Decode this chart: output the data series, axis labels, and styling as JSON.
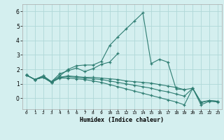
{
  "title": "",
  "xlabel": "Humidex (Indice chaleur)",
  "background_color": "#d4efef",
  "grid_color": "#b0d8d8",
  "line_color": "#2e7d72",
  "x_ticks": [
    0,
    1,
    2,
    3,
    4,
    5,
    6,
    7,
    8,
    9,
    10,
    11,
    12,
    13,
    14,
    15,
    16,
    17,
    18,
    19,
    20,
    21,
    22,
    23
  ],
  "ylim": [
    -0.75,
    6.5
  ],
  "xlim": [
    -0.5,
    23.5
  ],
  "series": [
    [
      1.6,
      1.3,
      1.55,
      1.15,
      1.55,
      2.0,
      2.25,
      2.3,
      2.3,
      2.55,
      3.65,
      4.25,
      4.8,
      5.35,
      5.9,
      2.4,
      2.7,
      2.5,
      0.65,
      0.6,
      null,
      null,
      null,
      null
    ],
    [
      1.6,
      1.3,
      1.55,
      1.15,
      1.7,
      1.9,
      2.1,
      1.85,
      2.05,
      2.35,
      2.5,
      3.1,
      null,
      null,
      null,
      null,
      null,
      null,
      null,
      null,
      null,
      null,
      null,
      null
    ],
    [
      1.6,
      1.3,
      1.45,
      1.1,
      1.45,
      1.55,
      1.5,
      1.45,
      1.45,
      1.4,
      1.35,
      1.3,
      1.2,
      1.15,
      1.1,
      1.05,
      0.95,
      0.85,
      0.75,
      0.6,
      0.7,
      -0.25,
      -0.15,
      -0.2
    ],
    [
      1.6,
      1.3,
      1.45,
      1.1,
      1.45,
      1.5,
      1.45,
      1.4,
      1.35,
      1.3,
      1.2,
      1.1,
      1.0,
      0.9,
      0.8,
      0.7,
      0.55,
      0.45,
      0.3,
      0.15,
      0.7,
      -0.3,
      -0.15,
      -0.2
    ],
    [
      1.6,
      1.3,
      1.45,
      1.1,
      1.4,
      1.4,
      1.35,
      1.3,
      1.2,
      1.1,
      0.95,
      0.8,
      0.65,
      0.5,
      0.35,
      0.2,
      0.05,
      -0.1,
      -0.25,
      -0.45,
      0.7,
      -0.45,
      -0.2,
      -0.25
    ]
  ]
}
